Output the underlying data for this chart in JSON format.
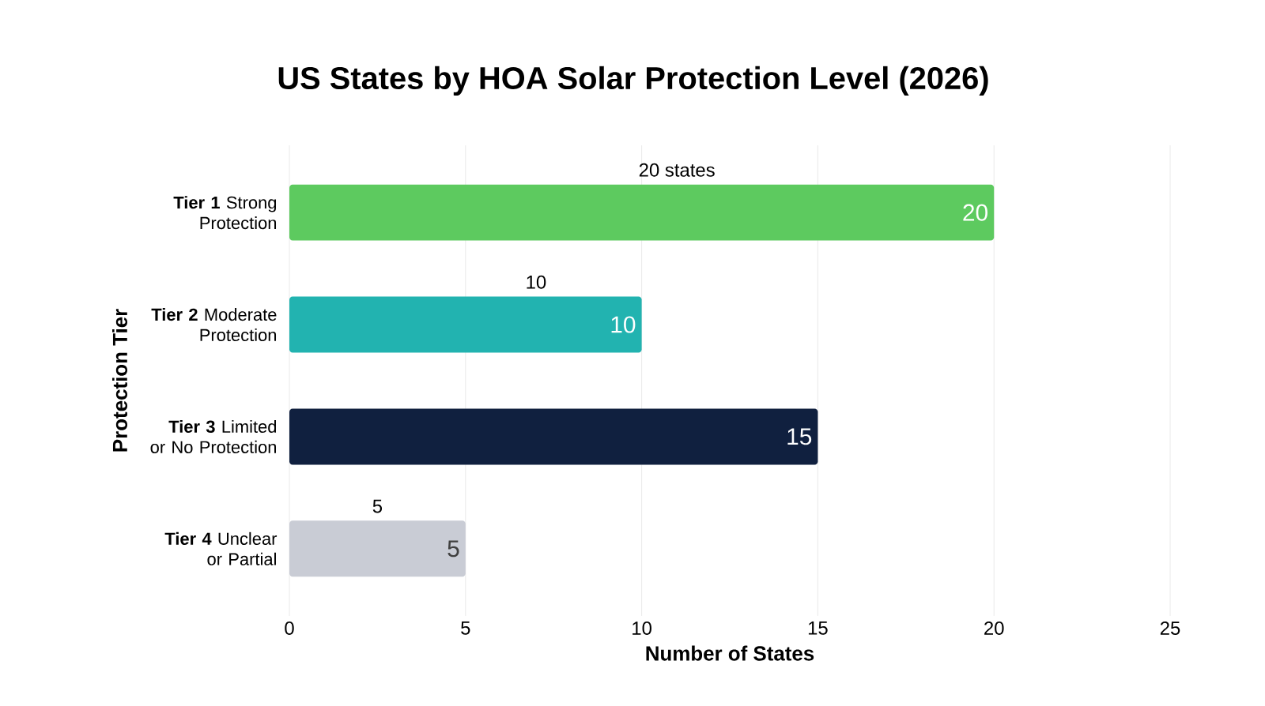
{
  "chart_data": {
    "type": "bar",
    "orientation": "horizontal",
    "title": "US States by HOA Solar Protection Level (2026)",
    "xlabel": "Number of States",
    "ylabel": "Protection Tier",
    "categories": [
      "**Tier 1** Strong Protection",
      "**Tier 2** Moderate Protection",
      "**Tier 3** Limited or No Protection",
      "**Tier 4** Unclear or Partial"
    ],
    "values": [
      20,
      10,
      15,
      5
    ],
    "colors": [
      "#5dca5f",
      "#22b3b0",
      "#10203f",
      "#c9ccd5"
    ],
    "data_labels": true,
    "annotations": [
      "20 states",
      "10",
      "5"
    ],
    "xlim": [
      0,
      25
    ],
    "xticks": [
      0,
      5,
      10,
      15,
      20,
      25
    ],
    "grid": "x"
  }
}
